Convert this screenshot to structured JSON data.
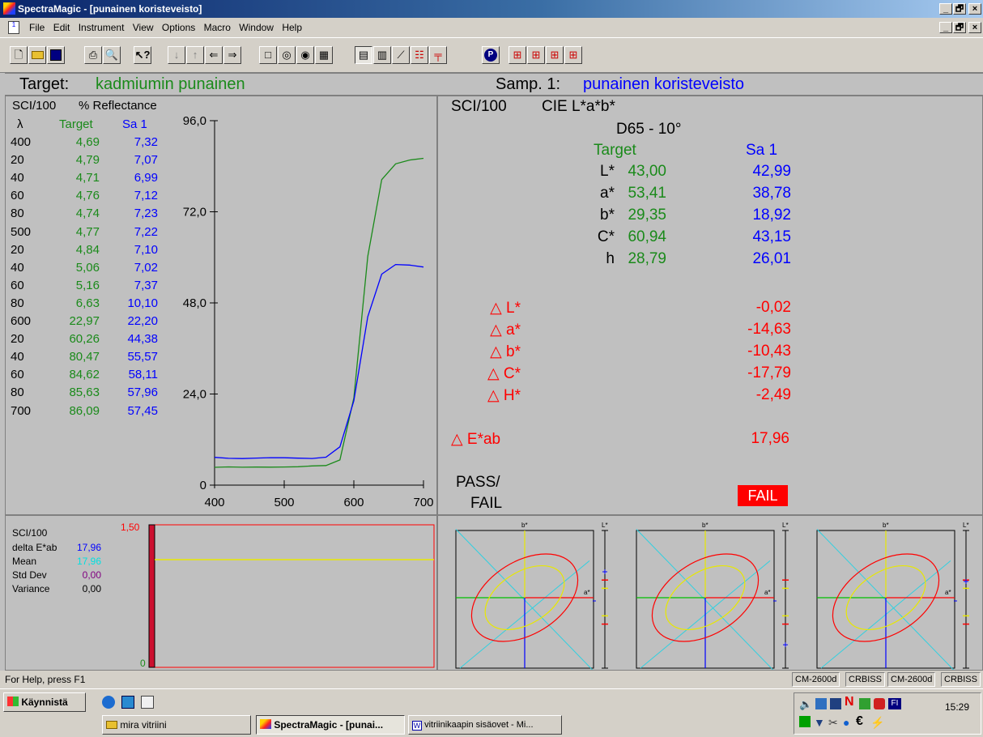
{
  "window": {
    "title": "SpectraMagic - [punainen koristeveisto]",
    "min": "_",
    "max": "🗗",
    "close": "×"
  },
  "menu": [
    "File",
    "Edit",
    "Instrument",
    "View",
    "Options",
    "Macro",
    "Window",
    "Help"
  ],
  "header": {
    "target_label": "Target:",
    "target_name": "kadmiumin punainen",
    "sample_label": "Samp. 1:",
    "sample_name": "punainen koristeveisto"
  },
  "reflectance": {
    "mode": "SCI/100",
    "title": "% Reflectance",
    "col_lambda": "λ",
    "col_target": "Target",
    "col_sample": "Sa 1",
    "rows": [
      {
        "wl": "400",
        "t": "4,69",
        "s": "7,32"
      },
      {
        "wl": "20",
        "t": "4,79",
        "s": "7,07"
      },
      {
        "wl": "40",
        "t": "4,71",
        "s": "6,99"
      },
      {
        "wl": "60",
        "t": "4,76",
        "s": "7,12"
      },
      {
        "wl": "80",
        "t": "4,74",
        "s": "7,23"
      },
      {
        "wl": "500",
        "t": "4,77",
        "s": "7,22"
      },
      {
        "wl": "20",
        "t": "4,84",
        "s": "7,10"
      },
      {
        "wl": "40",
        "t": "5,06",
        "s": "7,02"
      },
      {
        "wl": "60",
        "t": "5,16",
        "s": "7,37"
      },
      {
        "wl": "80",
        "t": "6,63",
        "s": "10,10"
      },
      {
        "wl": "600",
        "t": "22,97",
        "s": "22,20"
      },
      {
        "wl": "20",
        "t": "60,26",
        "s": "44,38"
      },
      {
        "wl": "40",
        "t": "80,47",
        "s": "55,57"
      },
      {
        "wl": "60",
        "t": "84,62",
        "s": "58,11"
      },
      {
        "wl": "80",
        "t": "85,63",
        "s": "57,96"
      },
      {
        "wl": "700",
        "t": "86,09",
        "s": "57,45"
      }
    ]
  },
  "chart_data": {
    "type": "line",
    "x": [
      400,
      420,
      440,
      460,
      480,
      500,
      520,
      540,
      560,
      580,
      600,
      620,
      640,
      660,
      680,
      700
    ],
    "series": [
      {
        "name": "Target",
        "color": "#1a8a1a",
        "values": [
          4.69,
          4.79,
          4.71,
          4.76,
          4.74,
          4.77,
          4.84,
          5.06,
          5.16,
          6.63,
          22.97,
          60.26,
          80.47,
          84.62,
          85.63,
          86.09
        ]
      },
      {
        "name": "Sa 1",
        "color": "#0000ff",
        "values": [
          7.32,
          7.07,
          6.99,
          7.12,
          7.23,
          7.22,
          7.1,
          7.02,
          7.37,
          10.1,
          22.2,
          44.38,
          55.57,
          58.11,
          57.96,
          57.45
        ]
      }
    ],
    "xlim": [
      400,
      700
    ],
    "ylim": [
      0,
      96
    ],
    "xticks": [
      "400",
      "500",
      "600",
      "700"
    ],
    "yticks": [
      "0",
      "24,0",
      "48,0",
      "72,0",
      "96,0"
    ]
  },
  "colorimetry": {
    "mode": "SCI/100",
    "space": "CIE L*a*b*",
    "illuminant": "D65 - 10°",
    "col_target": "Target",
    "col_sample": "Sa 1",
    "values": [
      {
        "label": "L*",
        "t": "43,00",
        "s": "42,99"
      },
      {
        "label": "a*",
        "t": "53,41",
        "s": "38,78"
      },
      {
        "label": "b*",
        "t": "29,35",
        "s": "18,92"
      },
      {
        "label": "C*",
        "t": "60,94",
        "s": "43,15"
      },
      {
        "label": "h",
        "t": "28,79",
        "s": "26,01"
      }
    ],
    "deltas": [
      {
        "label": "△ L*",
        "v": "-0,02"
      },
      {
        "label": "△ a*",
        "v": "-14,63"
      },
      {
        "label": "△ b*",
        "v": "-10,43"
      },
      {
        "label": "△ C*",
        "v": "-17,79"
      },
      {
        "label": "△ H*",
        "v": "-2,49"
      }
    ],
    "delta_e_label": "△ E*ab",
    "delta_e": "17,96",
    "pass_fail_label_1": "PASS/",
    "pass_fail_label_2": "FAIL",
    "result": "FAIL"
  },
  "stats": {
    "mode": "SCI/100",
    "rows": [
      {
        "label": "delta E*ab",
        "v": "17,96",
        "color": "#0000ff"
      },
      {
        "label": "Mean",
        "v": "17,96",
        "color": "#00e0e0"
      },
      {
        "label": "Std Dev",
        "v": "0,00",
        "color": "#800080"
      },
      {
        "label": "Variance",
        "v": "0,00",
        "color": "#000000"
      }
    ],
    "ymax": "1,50",
    "ymin": "0"
  },
  "scatter": {
    "b_label": "b*",
    "a_label": "a*",
    "l_label": "L*"
  },
  "status": {
    "help": "For Help, press F1",
    "panes": [
      "CM-2600d",
      "CRBISS",
      "CM-2600d",
      "CRBISS"
    ]
  },
  "taskbar": {
    "start": "Käynnistä",
    "tasks": [
      "mira vitriini",
      "SpectraMagic - [punai...",
      "vitriinikaapin sisäovet - Mi..."
    ],
    "clock": "15:29",
    "lang": "FI"
  }
}
